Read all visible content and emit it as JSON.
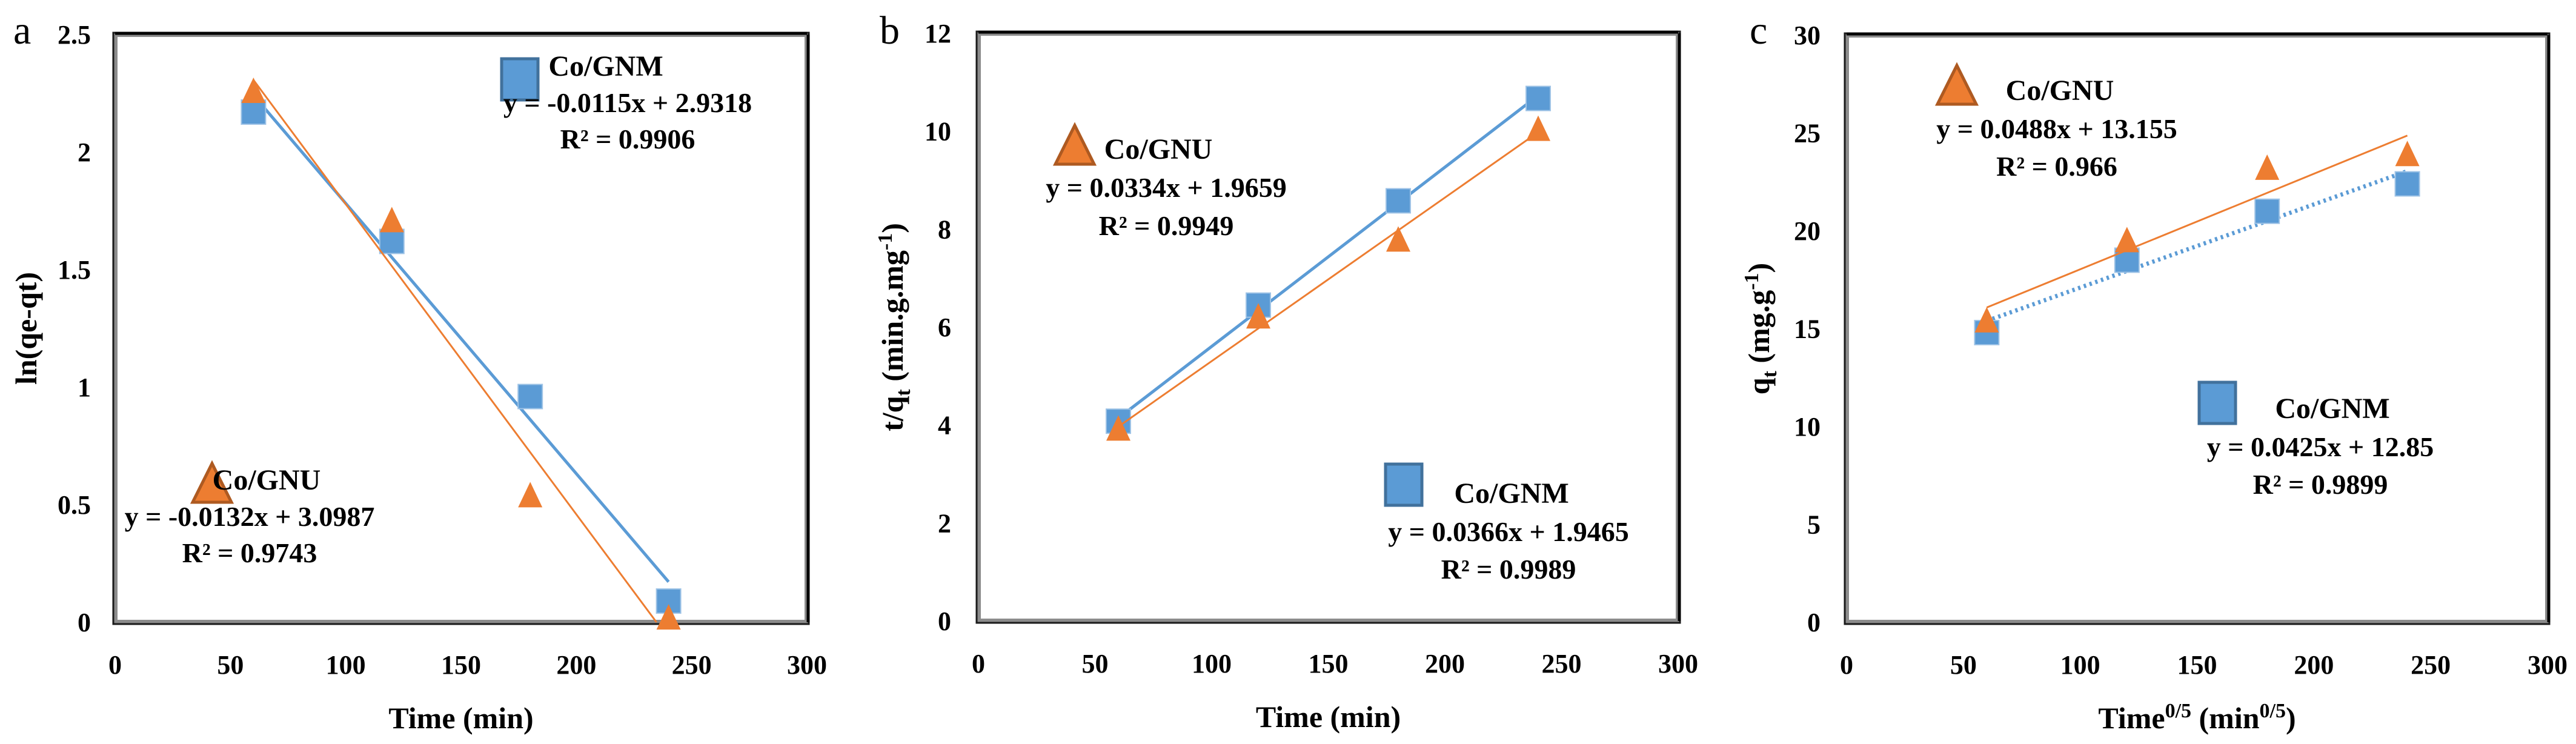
{
  "colors": {
    "gnm_fill": "#5B9BD5",
    "gnm_stroke": "#41719C",
    "gnu_fill": "#ED7D31",
    "gnu_stroke": "#AE5A21",
    "frame": "#000000"
  },
  "chart_data": [
    {
      "panel": "a",
      "type": "scatter",
      "title": "",
      "xlabel": "Time (min)",
      "ylabel": "ln(qe-qt)",
      "xlim": [
        0,
        300
      ],
      "ylim": [
        0,
        2.5
      ],
      "xticks": [
        0,
        50,
        100,
        150,
        200,
        250,
        300
      ],
      "yticks": [
        0,
        0.5,
        1,
        1.5,
        2,
        2.5
      ],
      "ytick_labels": [
        "0",
        "0.5",
        "1",
        "1.5",
        "2",
        "2.5"
      ],
      "grid": false,
      "series": [
        {
          "name": "Co/GNM",
          "marker": "square",
          "x": [
            60,
            120,
            180,
            240
          ],
          "y": [
            2.17,
            1.62,
            0.96,
            0.09
          ],
          "trendline": {
            "equation": "y = -0.0115x + 2.9318",
            "r2": "R² = 0.9906",
            "slope": -0.0115,
            "intercept": 2.9318
          },
          "legend_position": "top-right"
        },
        {
          "name": "Co/GNU",
          "marker": "triangle",
          "x": [
            60,
            120,
            180,
            240
          ],
          "y": [
            2.25,
            1.7,
            0.53,
            0.01
          ],
          "trendline": {
            "equation": "y = -0.0132x + 3.0987",
            "r2": "R² = 0.9743",
            "slope": -0.0132,
            "intercept": 3.0987
          },
          "legend_position": "bottom-left"
        }
      ]
    },
    {
      "panel": "b",
      "type": "scatter",
      "title": "",
      "xlabel": "Time (min)",
      "ylabel": "t/qt (min.g.mg-1)",
      "ylabel_parts": {
        "main": "t/q",
        "sub": "t",
        "rest": " (min.g.mg",
        "sup": "-1",
        "close": ")"
      },
      "xlim": [
        0,
        300
      ],
      "ylim": [
        0,
        12
      ],
      "xticks": [
        0,
        50,
        100,
        150,
        200,
        250,
        300
      ],
      "yticks": [
        0,
        2,
        4,
        6,
        8,
        10,
        12
      ],
      "ytick_labels": [
        "0",
        "2",
        "4",
        "6",
        "8",
        "10",
        "12"
      ],
      "grid": false,
      "series": [
        {
          "name": "Co/GNM",
          "marker": "square",
          "x": [
            60,
            120,
            180,
            240
          ],
          "y": [
            4.08,
            6.45,
            8.58,
            10.67
          ],
          "trendline": {
            "equation": "y = 0.0366x + 1.9465",
            "r2": "R² = 0.9989",
            "slope": 0.0366,
            "intercept": 1.9465
          },
          "legend_position": "bottom-right"
        },
        {
          "name": "Co/GNU",
          "marker": "triangle",
          "x": [
            60,
            120,
            180,
            240
          ],
          "y": [
            3.88,
            6.17,
            7.74,
            10.0
          ],
          "trendline": {
            "equation": "y = 0.0334x + 1.9659",
            "r2": "R² = 0.9949",
            "slope": 0.0334,
            "intercept": 1.9659
          },
          "legend_position": "top-left"
        }
      ]
    },
    {
      "panel": "c",
      "type": "scatter",
      "title": "",
      "xlabel": "Time0/5 (min0/5)",
      "xlabel_parts": {
        "main": "Time",
        "sup1": "0/5",
        "mid": " (min",
        "sup2": "0/5",
        "close": ")"
      },
      "ylabel": "qt (mg.g-1)",
      "ylabel_parts": {
        "main": "q",
        "sub": "t",
        "rest": "  (mg.g",
        "sup": "-1",
        "close": ")"
      },
      "xlim": [
        0,
        300
      ],
      "ylim": [
        0,
        30
      ],
      "xticks": [
        0,
        50,
        100,
        150,
        200,
        250,
        300
      ],
      "yticks": [
        0,
        5,
        10,
        15,
        20,
        25,
        30
      ],
      "ytick_labels": [
        "0",
        "5",
        "10",
        "15",
        "20",
        "25",
        "30"
      ],
      "grid": false,
      "series": [
        {
          "name": "Co/GNM",
          "marker": "square",
          "x": [
            60,
            120,
            180,
            240
          ],
          "y": [
            14.8,
            18.5,
            21.0,
            22.4
          ],
          "trendline": {
            "equation": "y = 0.0425x + 12.85",
            "r2": "R² = 0.9899",
            "slope": 0.0425,
            "intercept": 12.85,
            "style": "dotted"
          },
          "legend_position": "bottom-right"
        },
        {
          "name": "Co/GNU",
          "marker": "triangle",
          "x": [
            60,
            120,
            180,
            240
          ],
          "y": [
            15.3,
            19.4,
            23.1,
            23.8
          ],
          "trendline": {
            "equation": "y = 0.0488x + 13.155",
            "r2": "R² = 0.966",
            "slope": 0.0488,
            "intercept": 13.155
          },
          "legend_position": "top-left"
        }
      ]
    }
  ]
}
